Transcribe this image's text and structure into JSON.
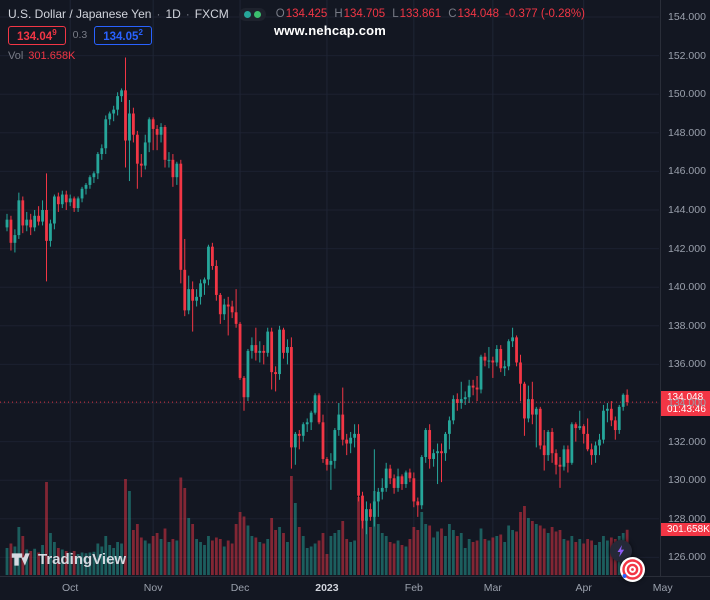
{
  "legend": {
    "title": "U.S. Dollar / Japanese Yen",
    "separator": "·",
    "interval": "1D",
    "exchange": "FXCM",
    "ohlc": {
      "o_label": "O",
      "o": "134.425",
      "h_label": "H",
      "h": "134.705",
      "l_label": "L",
      "l": "133.861",
      "c_label": "C",
      "c": "134.048",
      "change": "-0.377 (-0.28%)"
    },
    "sell": {
      "price": "134.04",
      "pip": "9"
    },
    "spread": "0.3",
    "buy": {
      "price": "134.05",
      "pip": "2"
    },
    "vol_label": "Vol",
    "vol_value": "301.658K"
  },
  "watermark": "www.nehcap.com",
  "price_axis": {
    "labels": [
      "154.000",
      "152.000",
      "150.000",
      "148.000",
      "146.000",
      "144.000",
      "142.000",
      "140.000",
      "138.000",
      "136.000",
      "134.000",
      "132.000",
      "130.000",
      "128.000",
      "126.000"
    ],
    "badge": {
      "price": "134.048",
      "countdown": "01:43:46"
    },
    "volume_badge": "301.658K"
  },
  "time_axis": {
    "labels": [
      {
        "label": "Oct",
        "i": 16
      },
      {
        "label": "Nov",
        "i": 37
      },
      {
        "label": "Dec",
        "i": 59
      },
      {
        "label": "2023",
        "i": 81,
        "major": true
      },
      {
        "label": "Feb",
        "i": 103
      },
      {
        "label": "Mar",
        "i": 123
      },
      {
        "label": "Apr",
        "i": 146
      },
      {
        "label": "May",
        "i": 166
      }
    ]
  },
  "logo": {
    "text": "TradingView"
  },
  "colors": {
    "background": "#131722",
    "up": "#26a69a",
    "down": "#f23645",
    "buy": "#2962ff",
    "grid": "#1c2130",
    "grid_vertical": "#1f2535",
    "axis_text": "#9aa0ac",
    "text": "#d1d4dc",
    "muted": "#787b86",
    "badge_bg": "#f23645",
    "watermark": "#ffffff",
    "bolt": "#8e5cf7"
  },
  "chart_data": {
    "type": "candlestick",
    "symbol": "USD/JPY",
    "exchange": "FXCM",
    "interval": "1D",
    "title": "U.S. Dollar / Japanese Yen · 1D · FXCM",
    "price_axis": {
      "min": 126,
      "max": 154,
      "step": 2
    },
    "current_price": 134.048,
    "current_volume_k": 301.658,
    "legend_position": "top-left",
    "grid": true,
    "columns": [
      "open",
      "high",
      "low",
      "close",
      "volume_k"
    ],
    "candles": [
      [
        143.1,
        143.8,
        142.9,
        143.5,
        180
      ],
      [
        143.5,
        143.7,
        141.9,
        142.3,
        210
      ],
      [
        142.3,
        143.0,
        141.8,
        142.7,
        190
      ],
      [
        142.7,
        144.9,
        142.5,
        144.5,
        320
      ],
      [
        144.5,
        144.7,
        142.8,
        143.2,
        260
      ],
      [
        143.2,
        143.9,
        142.9,
        143.5,
        170
      ],
      [
        143.5,
        143.8,
        142.7,
        143.1,
        160
      ],
      [
        143.1,
        144.0,
        142.9,
        143.7,
        175
      ],
      [
        143.7,
        144.2,
        143.2,
        143.4,
        150
      ],
      [
        143.4,
        144.5,
        143.2,
        144.0,
        200
      ],
      [
        144.0,
        145.9,
        140.3,
        142.4,
        620
      ],
      [
        142.4,
        143.5,
        142.1,
        143.3,
        280
      ],
      [
        143.3,
        144.8,
        143.0,
        144.7,
        220
      ],
      [
        144.7,
        144.9,
        143.9,
        144.3,
        180
      ],
      [
        144.3,
        145.0,
        144.1,
        144.8,
        170
      ],
      [
        144.8,
        145.0,
        144.0,
        144.4,
        160
      ],
      [
        144.4,
        144.8,
        144.2,
        144.6,
        150
      ],
      [
        144.6,
        144.7,
        143.9,
        144.1,
        160
      ],
      [
        144.1,
        144.7,
        143.9,
        144.6,
        140
      ],
      [
        144.6,
        145.2,
        144.4,
        145.1,
        150
      ],
      [
        145.1,
        145.4,
        144.8,
        145.3,
        145
      ],
      [
        145.3,
        145.8,
        145.1,
        145.7,
        150
      ],
      [
        145.7,
        146.0,
        145.4,
        145.9,
        155
      ],
      [
        145.9,
        147.0,
        145.6,
        146.9,
        210
      ],
      [
        146.9,
        147.4,
        146.6,
        147.2,
        190
      ],
      [
        147.2,
        148.9,
        146.9,
        148.7,
        260
      ],
      [
        148.7,
        149.1,
        148.4,
        149.0,
        200
      ],
      [
        149.0,
        149.4,
        148.6,
        149.2,
        180
      ],
      [
        149.2,
        150.1,
        148.9,
        149.9,
        220
      ],
      [
        149.9,
        150.3,
        149.6,
        150.2,
        210
      ],
      [
        150.2,
        151.9,
        146.2,
        147.6,
        640
      ],
      [
        147.6,
        149.7,
        145.5,
        149.0,
        560
      ],
      [
        149.0,
        149.3,
        147.5,
        147.9,
        300
      ],
      [
        147.9,
        148.1,
        145.1,
        146.4,
        340
      ],
      [
        146.4,
        146.9,
        145.7,
        146.3,
        250
      ],
      [
        146.3,
        147.9,
        146.1,
        147.5,
        230
      ],
      [
        147.5,
        148.8,
        147.0,
        148.7,
        210
      ],
      [
        148.7,
        148.8,
        147.1,
        148.2,
        260
      ],
      [
        148.2,
        148.4,
        147.1,
        147.9,
        280
      ],
      [
        147.9,
        148.5,
        147.5,
        148.3,
        240
      ],
      [
        148.3,
        148.4,
        146.2,
        146.6,
        310
      ],
      [
        146.6,
        147.0,
        146.2,
        146.6,
        220
      ],
      [
        146.6,
        146.9,
        145.2,
        145.7,
        240
      ],
      [
        145.7,
        146.5,
        145.3,
        146.4,
        230
      ],
      [
        146.4,
        146.6,
        140.2,
        140.9,
        650
      ],
      [
        140.9,
        142.5,
        138.5,
        138.8,
        580
      ],
      [
        138.8,
        140.6,
        138.6,
        139.9,
        380
      ],
      [
        139.9,
        140.3,
        137.7,
        139.3,
        340
      ],
      [
        139.3,
        139.9,
        139.0,
        139.5,
        240
      ],
      [
        139.5,
        140.4,
        139.1,
        140.2,
        220
      ],
      [
        140.2,
        140.5,
        139.6,
        140.4,
        200
      ],
      [
        140.4,
        142.2,
        140.1,
        142.1,
        260
      ],
      [
        142.1,
        142.3,
        140.9,
        141.1,
        230
      ],
      [
        141.1,
        141.4,
        139.3,
        139.6,
        250
      ],
      [
        139.6,
        139.7,
        138.1,
        138.6,
        240
      ],
      [
        138.6,
        139.4,
        138.3,
        139.1,
        190
      ],
      [
        139.1,
        139.5,
        137.5,
        139.0,
        230
      ],
      [
        139.0,
        139.3,
        138.4,
        138.7,
        210
      ],
      [
        138.7,
        139.9,
        137.9,
        138.1,
        340
      ],
      [
        138.1,
        138.2,
        135.2,
        135.3,
        420
      ],
      [
        135.3,
        135.4,
        133.6,
        134.3,
        390
      ],
      [
        134.3,
        136.8,
        134.1,
        136.7,
        330
      ],
      [
        136.7,
        137.4,
        136.3,
        137.0,
        260
      ],
      [
        137.0,
        137.9,
        136.2,
        136.6,
        250
      ],
      [
        136.6,
        137.2,
        136.1,
        136.7,
        220
      ],
      [
        136.7,
        137.0,
        136.0,
        136.6,
        210
      ],
      [
        136.6,
        137.9,
        136.4,
        137.7,
        240
      ],
      [
        137.7,
        137.9,
        134.7,
        135.6,
        380
      ],
      [
        135.6,
        135.9,
        134.6,
        135.5,
        300
      ],
      [
        135.5,
        138.0,
        135.2,
        137.8,
        320
      ],
      [
        137.8,
        137.9,
        136.3,
        136.6,
        280
      ],
      [
        136.6,
        137.3,
        136.0,
        136.9,
        220
      ],
      [
        136.9,
        137.4,
        130.6,
        131.7,
        660
      ],
      [
        131.7,
        132.5,
        130.8,
        132.4,
        480
      ],
      [
        132.4,
        132.6,
        131.6,
        132.3,
        320
      ],
      [
        132.3,
        133.0,
        132.0,
        132.9,
        260
      ],
      [
        132.9,
        133.2,
        132.5,
        133.0,
        180
      ],
      [
        133.0,
        133.6,
        132.6,
        133.5,
        190
      ],
      [
        133.5,
        134.5,
        133.4,
        134.4,
        210
      ],
      [
        134.4,
        134.5,
        132.9,
        133.0,
        230
      ],
      [
        133.0,
        133.4,
        130.9,
        131.1,
        280
      ],
      [
        131.1,
        131.2,
        130.5,
        130.8,
        140
      ],
      [
        130.8,
        131.4,
        129.5,
        131.0,
        260
      ],
      [
        131.0,
        132.7,
        130.6,
        132.6,
        280
      ],
      [
        132.6,
        134.0,
        132.3,
        133.4,
        300
      ],
      [
        133.4,
        134.8,
        131.8,
        132.1,
        360
      ],
      [
        132.1,
        132.4,
        131.3,
        131.9,
        240
      ],
      [
        131.9,
        132.5,
        131.4,
        132.2,
        220
      ],
      [
        132.2,
        132.9,
        131.7,
        132.4,
        230
      ],
      [
        132.4,
        132.9,
        128.9,
        129.2,
        520
      ],
      [
        129.2,
        129.4,
        127.5,
        127.9,
        460
      ],
      [
        127.9,
        128.9,
        127.2,
        128.5,
        380
      ],
      [
        128.5,
        128.8,
        127.9,
        128.1,
        320
      ],
      [
        128.1,
        131.6,
        127.6,
        128.9,
        560
      ],
      [
        128.9,
        129.6,
        128.1,
        129.4,
        340
      ],
      [
        129.4,
        130.1,
        129.0,
        129.6,
        280
      ],
      [
        129.6,
        130.9,
        129.4,
        130.6,
        260
      ],
      [
        130.6,
        130.8,
        129.8,
        130.1,
        220
      ],
      [
        130.1,
        130.3,
        129.3,
        129.6,
        210
      ],
      [
        129.6,
        130.6,
        129.4,
        130.2,
        230
      ],
      [
        130.2,
        130.3,
        129.5,
        129.8,
        200
      ],
      [
        129.8,
        130.5,
        129.6,
        130.4,
        190
      ],
      [
        130.4,
        130.6,
        129.9,
        130.1,
        240
      ],
      [
        130.1,
        130.4,
        128.6,
        128.9,
        320
      ],
      [
        128.9,
        129.1,
        128.1,
        128.7,
        300
      ],
      [
        128.7,
        131.3,
        128.5,
        131.2,
        420
      ],
      [
        131.2,
        132.7,
        130.9,
        132.6,
        340
      ],
      [
        132.6,
        132.9,
        130.6,
        131.1,
        330
      ],
      [
        131.1,
        131.6,
        130.7,
        131.4,
        250
      ],
      [
        131.4,
        131.9,
        129.8,
        131.5,
        290
      ],
      [
        131.5,
        131.9,
        129.9,
        131.4,
        310
      ],
      [
        131.4,
        132.5,
        131.0,
        132.4,
        260
      ],
      [
        132.4,
        133.3,
        131.6,
        133.1,
        340
      ],
      [
        133.1,
        134.4,
        132.9,
        134.2,
        300
      ],
      [
        134.2,
        134.5,
        133.6,
        134.0,
        260
      ],
      [
        134.0,
        135.1,
        133.7,
        134.2,
        280
      ],
      [
        134.2,
        134.6,
        133.9,
        134.3,
        180
      ],
      [
        134.3,
        135.2,
        134.0,
        134.9,
        240
      ],
      [
        134.9,
        135.2,
        134.4,
        134.8,
        220
      ],
      [
        134.8,
        135.4,
        134.1,
        134.7,
        230
      ],
      [
        134.7,
        136.5,
        134.5,
        136.4,
        310
      ],
      [
        136.4,
        136.6,
        135.9,
        136.2,
        240
      ],
      [
        136.2,
        136.9,
        135.8,
        136.2,
        230
      ],
      [
        136.2,
        136.4,
        135.3,
        136.1,
        250
      ],
      [
        136.1,
        137.0,
        135.9,
        136.8,
        260
      ],
      [
        136.8,
        137.0,
        135.6,
        135.8,
        270
      ],
      [
        135.8,
        136.2,
        135.4,
        135.9,
        220
      ],
      [
        135.9,
        137.3,
        135.7,
        137.2,
        330
      ],
      [
        137.2,
        137.9,
        136.9,
        137.4,
        300
      ],
      [
        137.4,
        137.5,
        135.9,
        136.1,
        290
      ],
      [
        136.1,
        136.5,
        134.1,
        135.0,
        420
      ],
      [
        135.0,
        135.1,
        132.3,
        133.2,
        460
      ],
      [
        133.2,
        134.9,
        133.0,
        134.2,
        380
      ],
      [
        134.2,
        135.1,
        132.9,
        133.4,
        360
      ],
      [
        133.4,
        133.8,
        131.7,
        133.7,
        340
      ],
      [
        133.7,
        133.8,
        131.6,
        131.8,
        330
      ],
      [
        131.8,
        132.6,
        130.5,
        131.3,
        310
      ],
      [
        131.3,
        132.6,
        131.0,
        132.5,
        280
      ],
      [
        132.5,
        132.7,
        130.9,
        131.4,
        320
      ],
      [
        131.4,
        131.6,
        130.3,
        130.8,
        290
      ],
      [
        130.8,
        131.2,
        129.6,
        130.7,
        300
      ],
      [
        130.7,
        131.8,
        130.5,
        131.6,
        240
      ],
      [
        131.6,
        131.8,
        130.4,
        130.9,
        230
      ],
      [
        130.9,
        133.0,
        130.8,
        132.9,
        260
      ],
      [
        132.9,
        133.0,
        132.0,
        132.7,
        220
      ],
      [
        132.7,
        133.6,
        132.6,
        132.8,
        240
      ],
      [
        132.8,
        132.9,
        131.9,
        132.4,
        210
      ],
      [
        132.4,
        133.2,
        131.5,
        131.6,
        240
      ],
      [
        131.6,
        131.9,
        130.8,
        131.3,
        230
      ],
      [
        131.3,
        132.0,
        130.9,
        131.8,
        200
      ],
      [
        131.8,
        132.4,
        131.3,
        132.1,
        220
      ],
      [
        132.1,
        133.9,
        131.9,
        133.6,
        260
      ],
      [
        133.6,
        134.0,
        133.0,
        133.7,
        230
      ],
      [
        133.7,
        134.1,
        132.8,
        133.1,
        250
      ],
      [
        133.1,
        133.3,
        132.1,
        132.6,
        240
      ],
      [
        132.6,
        133.9,
        132.4,
        133.8,
        260
      ],
      [
        133.8,
        134.5,
        133.6,
        134.425,
        280
      ],
      [
        134.425,
        134.705,
        133.861,
        134.048,
        301.658
      ]
    ]
  }
}
